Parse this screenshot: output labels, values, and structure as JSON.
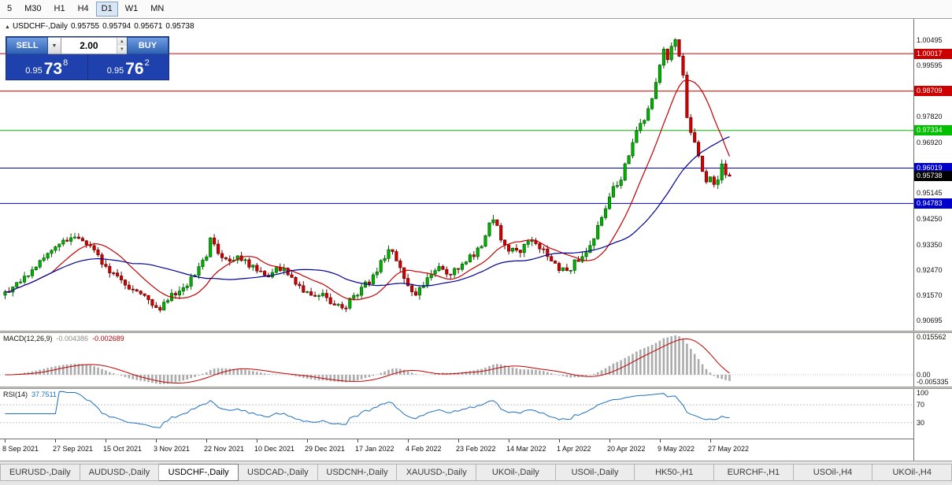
{
  "toolbar": {
    "timeframes": [
      {
        "label": "5",
        "active": false
      },
      {
        "label": "M30",
        "active": false
      },
      {
        "label": "H1",
        "active": false
      },
      {
        "label": "H4",
        "active": false
      },
      {
        "label": "D1",
        "active": true
      },
      {
        "label": "W1",
        "active": false
      },
      {
        "label": "MN",
        "active": false
      }
    ]
  },
  "chart_header": {
    "collapse_icon": "▲",
    "symbol": "USDCHF-,Daily",
    "open": "0.95755",
    "high": "0.95794",
    "low": "0.95671",
    "close": "0.95738"
  },
  "one_click": {
    "sell_label": "SELL",
    "buy_label": "BUY",
    "lot": "2.00",
    "dropdown_icon": "▼",
    "step_up_icon": "▲",
    "step_down_icon": "▼",
    "bid": {
      "base": "0.95",
      "pips": "73",
      "frac": "8"
    },
    "ask": {
      "base": "0.95",
      "pips": "76",
      "frac": "2"
    }
  },
  "tabs": {
    "active": "USDCHF-,Daily",
    "items": [
      "EURUSD-,Daily",
      "AUDUSD-,Daily",
      "USDCHF-,Daily",
      "USDCAD-,Daily",
      "USDCNH-,Daily",
      "XAUUSD-,Daily",
      "UKOil-,Daily",
      "USOil-,Daily",
      "HK50-,H1",
      "EURCHF-,H1",
      "USOil-,H4",
      "UKOil-,H4"
    ]
  },
  "chart_data": {
    "type": "candlestick",
    "symbol": "USDCHF-",
    "timeframe": "Daily",
    "bars": 188,
    "last_close": 0.95738,
    "ohlc_last": {
      "open": 0.95755,
      "high": 0.95794,
      "low": 0.95671,
      "close": 0.95738
    },
    "y_range": [
      0.9034,
      1.0123
    ],
    "price_keyframes": [
      [
        0,
        0.917
      ],
      [
        3,
        0.9195
      ],
      [
        6,
        0.923
      ],
      [
        9,
        0.927
      ],
      [
        11,
        0.93
      ],
      [
        15,
        0.935
      ],
      [
        19,
        0.9365
      ],
      [
        23,
        0.932
      ],
      [
        26,
        0.925
      ],
      [
        29,
        0.922
      ],
      [
        32,
        0.919
      ],
      [
        35,
        0.916
      ],
      [
        38,
        0.913
      ],
      [
        40,
        0.9115
      ],
      [
        43,
        0.916
      ],
      [
        46,
        0.918
      ],
      [
        50,
        0.9255
      ],
      [
        52,
        0.93
      ],
      [
        53,
        0.9355
      ],
      [
        54,
        0.9335
      ],
      [
        56,
        0.928
      ],
      [
        58,
        0.927
      ],
      [
        61,
        0.929
      ],
      [
        63,
        0.926
      ],
      [
        65,
        0.9245
      ],
      [
        68,
        0.923
      ],
      [
        71,
        0.9255
      ],
      [
        74,
        0.922
      ],
      [
        78,
        0.9165
      ],
      [
        82,
        0.916
      ],
      [
        85,
        0.9125
      ],
      [
        87,
        0.9105
      ],
      [
        89,
        0.914
      ],
      [
        92,
        0.918
      ],
      [
        95,
        0.922
      ],
      [
        99,
        0.932
      ],
      [
        101,
        0.928
      ],
      [
        104,
        0.919
      ],
      [
        106,
        0.916
      ],
      [
        109,
        0.9225
      ],
      [
        112,
        0.926
      ],
      [
        115,
        0.9235
      ],
      [
        117,
        0.926
      ],
      [
        120,
        0.929
      ],
      [
        123,
        0.933
      ],
      [
        125,
        0.942
      ],
      [
        126,
        0.943
      ],
      [
        127,
        0.939
      ],
      [
        129,
        0.933
      ],
      [
        131,
        0.931
      ],
      [
        133,
        0.9315
      ],
      [
        136,
        0.935
      ],
      [
        139,
        0.931
      ],
      [
        142,
        0.926
      ],
      [
        145,
        0.924
      ],
      [
        147,
        0.927
      ],
      [
        150,
        0.931
      ],
      [
        153,
        0.939
      ],
      [
        156,
        0.951
      ],
      [
        159,
        0.957
      ],
      [
        161,
        0.964
      ],
      [
        163,
        0.973
      ],
      [
        165,
        0.978
      ],
      [
        167,
        0.985
      ],
      [
        169,
        0.996
      ],
      [
        170,
        1.001
      ],
      [
        171,
        0.9985
      ],
      [
        172,
        1.003
      ],
      [
        173,
        1.004
      ],
      [
        174,
        0.999
      ],
      [
        175,
        0.992
      ],
      [
        176,
        0.979
      ],
      [
        177,
        0.972
      ],
      [
        178,
        0.969
      ],
      [
        179,
        0.964
      ],
      [
        180,
        0.96
      ],
      [
        181,
        0.9565
      ],
      [
        182,
        0.958
      ],
      [
        183,
        0.9555
      ],
      [
        184,
        0.956
      ],
      [
        185,
        0.9605
      ],
      [
        186,
        0.958
      ],
      [
        187,
        0.95738
      ]
    ],
    "candles": {
      "up_fill": "#00b300",
      "up_stroke": "#005c00",
      "down_fill": "#d40000",
      "down_stroke": "#6a0000"
    },
    "moving_averages": [
      {
        "period": 13,
        "color": "#c40000"
      },
      {
        "period": 34,
        "color": "#000099"
      }
    ],
    "horizontal_lines": [
      {
        "value": 1.00017,
        "label": "1.00017",
        "color": "#cc0000"
      },
      {
        "value": 0.98709,
        "label": "0.98709",
        "color": "#cc0000"
      },
      {
        "value": 0.97334,
        "label": "0.97334",
        "color": "#00c000"
      },
      {
        "value": 0.96019,
        "label": "0.96019",
        "color": "#0000cc"
      },
      {
        "value": 0.94783,
        "label": "0.94783",
        "color": "#0000cc"
      }
    ],
    "last_price": {
      "value": 0.95738,
      "label": "0.95738",
      "color": "#000000"
    },
    "y_axis": {
      "labels": [
        {
          "text": "1.00495",
          "value": 1.00495
        },
        {
          "text": "0.99595",
          "value": 0.99595
        },
        {
          "text": "0.97820",
          "value": 0.9782
        },
        {
          "text": "0.96920",
          "value": 0.9692
        },
        {
          "text": "0.95145",
          "value": 0.95145
        },
        {
          "text": "0.94250",
          "value": 0.9425
        },
        {
          "text": "0.93350",
          "value": 0.9335
        },
        {
          "text": "0.92470",
          "value": 0.9247
        },
        {
          "text": "0.91570",
          "value": 0.9157
        },
        {
          "text": "0.90695",
          "value": 0.90695
        }
      ]
    },
    "x_axis": {
      "interval": 13,
      "labels": [
        "8 Sep 2021",
        "27 Sep 2021",
        "15 Oct 2021",
        "3 Nov 2021",
        "22 Nov 2021",
        "10 Dec 2021",
        "29 Dec 2021",
        "17 Jan 2022",
        "4 Feb 2022",
        "23 Feb 2022",
        "14 Mar 2022",
        "1 Apr 2022",
        "20 Apr 2022",
        "9 May 2022",
        "27 May 2022"
      ]
    },
    "macd": {
      "label": "MACD(12,26,9)",
      "fast": 12,
      "slow": 26,
      "signal": 9,
      "value_main": "-0.004386",
      "value_signal": "-0.002689",
      "axis_labels": [
        "0.015562",
        "0.00",
        "-0.005335"
      ],
      "histogram_color": "#ababab",
      "signal_color": "#c40000"
    },
    "rsi": {
      "label": "RSI(14)",
      "period": 14,
      "value": "37.7511",
      "axis_labels": [
        "100",
        "70",
        "30"
      ],
      "levels": [
        70,
        30
      ],
      "color": "#1d6fc0"
    }
  }
}
